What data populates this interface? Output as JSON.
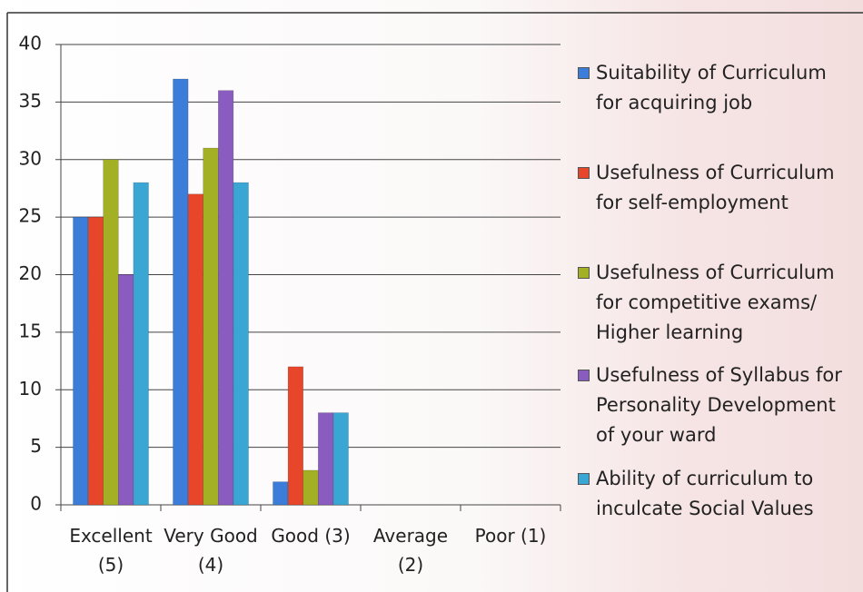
{
  "chart_data": {
    "type": "bar",
    "categories": [
      "Excellent (5)",
      "Very Good (4)",
      "Good (3)",
      "Average (2)",
      "Poor (1)"
    ],
    "series": [
      {
        "name": "Suitability of Curriculum for acquiring job",
        "color": "#3b7dd8",
        "values": [
          25,
          37,
          2,
          0,
          0
        ]
      },
      {
        "name": "Usefulness of Curriculum for self-employment",
        "color": "#e8462a",
        "values": [
          25,
          27,
          12,
          0,
          0
        ]
      },
      {
        "name": "Usefulness of Curriculum for competitive exams/ Higher learning",
        "color": "#a4b023",
        "values": [
          30,
          31,
          3,
          0,
          0
        ]
      },
      {
        "name": "Usefulness of Syllabus for Personality Development of your ward",
        "color": "#8a5cc0",
        "values": [
          20,
          36,
          8,
          0,
          0
        ]
      },
      {
        "name": "Ability of curriculum to inculcate Social Values",
        "color": "#3aa6d4",
        "values": [
          28,
          28,
          8,
          0,
          0
        ]
      }
    ],
    "ylim": [
      0,
      40
    ],
    "yticks": [
      0,
      5,
      10,
      15,
      20,
      25,
      30,
      35,
      40
    ],
    "grid": true,
    "legend": "right"
  }
}
